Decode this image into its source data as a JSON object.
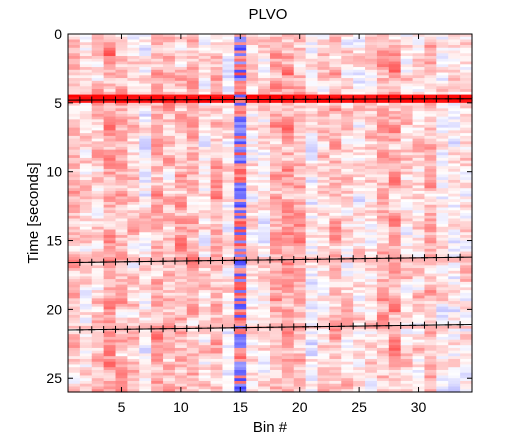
{
  "chart_data": {
    "type": "heatmap",
    "title": "PLVO",
    "xlabel": "Bin #",
    "ylabel": "Time [seconds]",
    "xlim": [
      0.5,
      34.5
    ],
    "ylim": [
      0,
      26
    ],
    "y_reversed": true,
    "x_ticks": [
      5,
      10,
      15,
      20,
      25,
      30
    ],
    "y_ticks": [
      0,
      5,
      10,
      15,
      20,
      25
    ],
    "n_bins": 34,
    "n_rows": 130,
    "colormap": {
      "negative": "#2020ff",
      "zero": "#ffffff",
      "positive": "#ff0000"
    },
    "value_range": [
      -1,
      1
    ],
    "marker_color": "#000000",
    "marker_symbol": "+",
    "event_lines": [
      {
        "y_start": 4.8,
        "y_end": 4.7
      },
      {
        "y_start": 16.6,
        "y_end": 16.2
      },
      {
        "y_start": 21.5,
        "y_end": 21.1
      }
    ],
    "marker_bins": [
      1.5,
      2.5,
      3.5,
      4.5,
      5.5,
      6.5,
      7.5,
      8.5,
      9.5,
      10.5,
      11.5,
      12.5,
      13.5,
      14.5,
      15.5,
      16.5,
      17.5,
      18.5,
      19.5,
      20.5,
      21.5,
      22.5,
      23.5,
      24.5,
      25.5,
      26.5,
      27.5,
      28.5,
      29.5,
      30.5,
      31.5,
      32.5,
      33.5
    ]
  }
}
